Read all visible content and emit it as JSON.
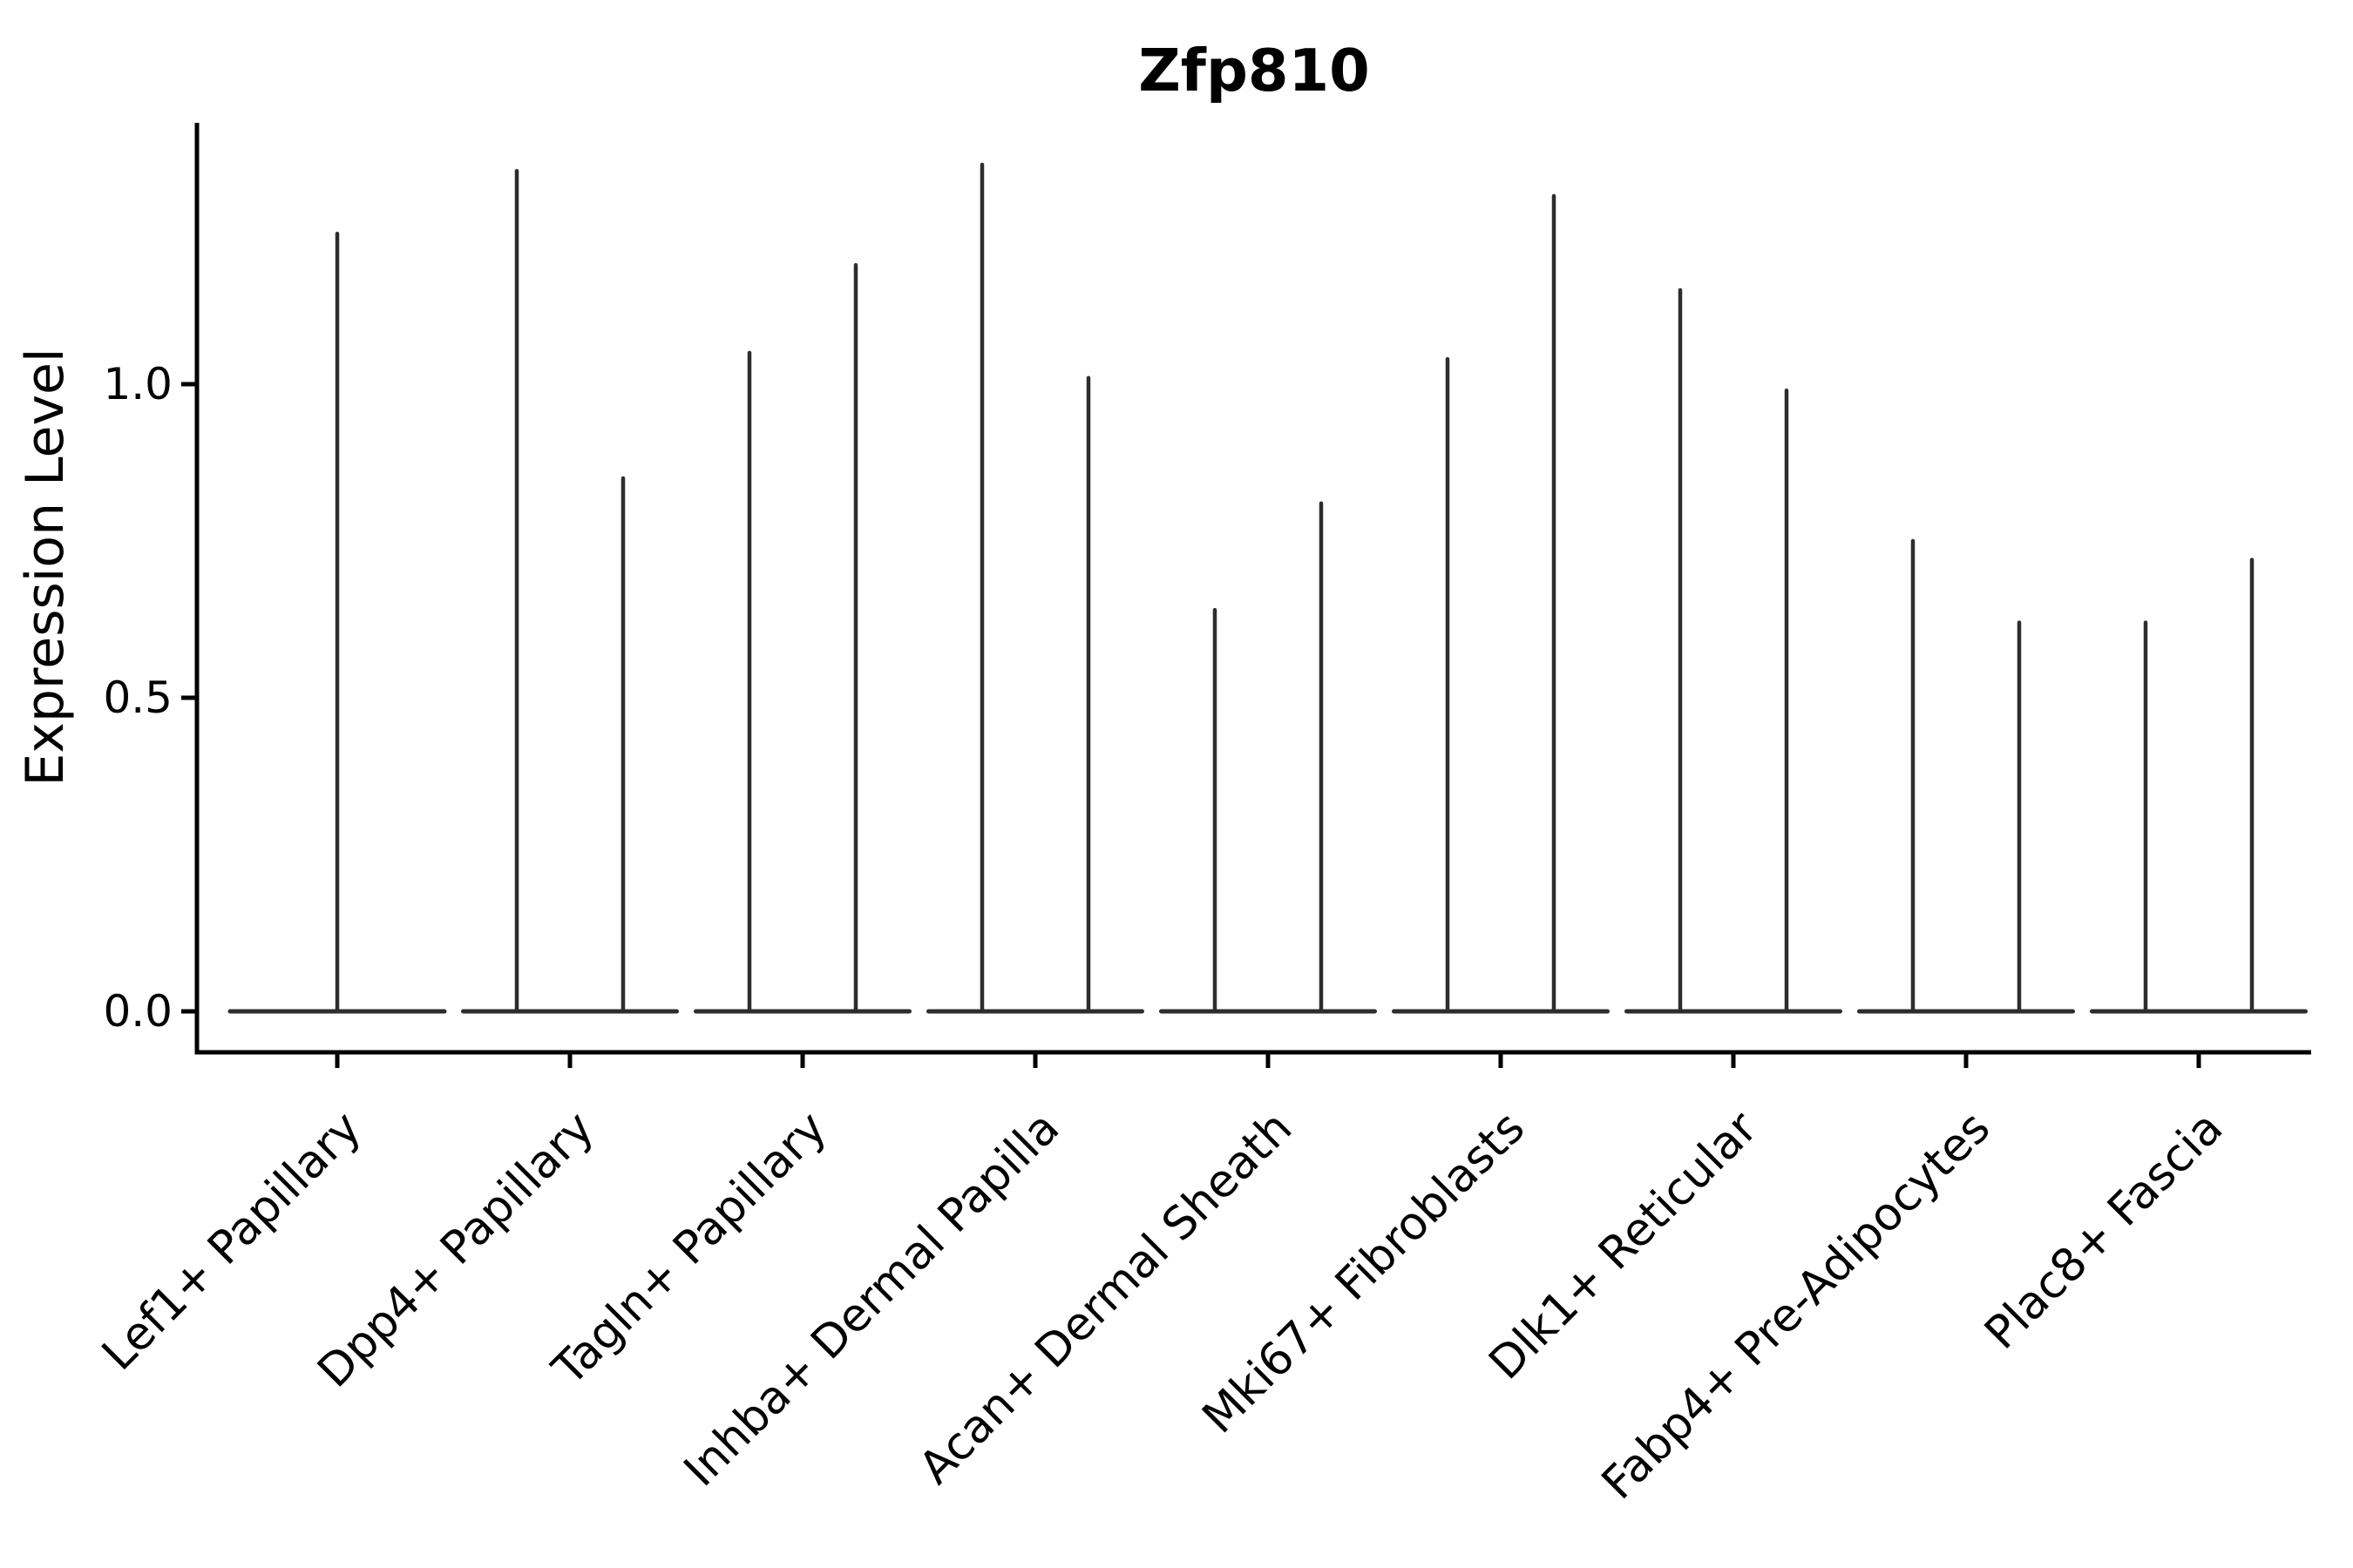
{
  "chart_data": {
    "type": "violin",
    "title": "Zfp810",
    "ylabel": "Expression Level",
    "xlabel": "",
    "yticks": [
      "0.0",
      "0.5",
      "1.0"
    ],
    "ytick_values": [
      0.0,
      0.5,
      1.0
    ],
    "ylim": [
      0,
      1.42
    ],
    "grid": false,
    "legend": "none",
    "background": "#ffffff",
    "axis_color": "#000000",
    "violin_color": "#2d2d2d",
    "violin_style": "density concentrated at 0 (wide flat base) with a thin spike up to the max expression value",
    "categories": [
      {
        "label": "Lef1+ Papillary",
        "violin_max": [
          1.24
        ]
      },
      {
        "label": "Dpp4+ Papillary",
        "violin_max": [
          1.34,
          0.85
        ]
      },
      {
        "label": "Tagln+ Papillary",
        "violin_max": [
          1.05,
          1.19
        ]
      },
      {
        "label": "Inhba+ Dermal Papilla",
        "violin_max": [
          1.35,
          1.01
        ]
      },
      {
        "label": "Acan+ Dermal Sheath",
        "violin_max": [
          0.64,
          0.81
        ]
      },
      {
        "label": "Mki67+ Fibroblasts",
        "violin_max": [
          1.04,
          1.3
        ]
      },
      {
        "label": "Dlk1+ Reticular",
        "violin_max": [
          1.15,
          0.99
        ]
      },
      {
        "label": "Fabp4+ Pre-Adipocytes",
        "violin_max": [
          0.75,
          0.62
        ]
      },
      {
        "label": "Plac8+ Fascia",
        "violin_max": [
          0.62,
          0.72
        ]
      }
    ]
  }
}
